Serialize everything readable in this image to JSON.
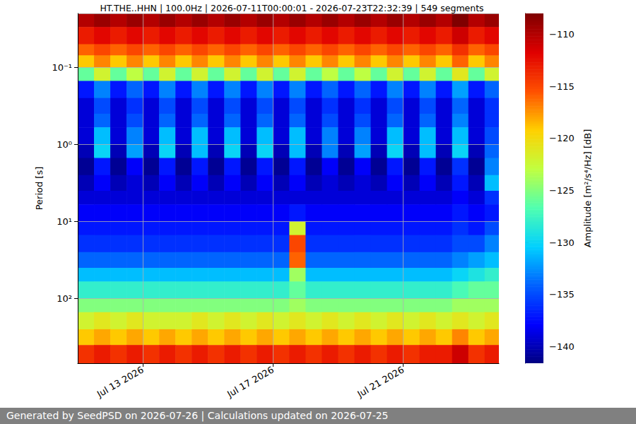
{
  "chart_data": {
    "type": "heatmap",
    "title": "HT.THE..HHN | 100.0Hz | 2026-07-11T00:00:01 - 2026-07-23T22:32:39 | 549 segments",
    "ylabel": "Period [s]",
    "footer": "Generated by SeedPSD on 2026-07-26 | Calculations updated on 2026-07-25",
    "log": "y",
    "grid": true,
    "xlim": [
      "2026-07-11T00:00:01",
      "2026-07-23T22:32:39"
    ],
    "xticks": [
      {
        "value": "2026-07-13T00:00:00",
        "label": "Jul 13 2026"
      },
      {
        "value": "2026-07-17T00:00:00",
        "label": "Jul 17 2026"
      },
      {
        "value": "2026-07-21T00:00:00",
        "label": "Jul 21 2026"
      }
    ],
    "ylim": [
      0.02,
      690
    ],
    "yticks": [
      {
        "value": 0.1,
        "label": "10⁻¹"
      },
      {
        "value": 1,
        "label": "10⁰"
      },
      {
        "value": 10,
        "label": "10¹"
      },
      {
        "value": 100,
        "label": "10²"
      }
    ],
    "x_edges": [
      "2026-07-11T00:00:01",
      "2026-07-11T12:00:00",
      "2026-07-12T00:00:00",
      "2026-07-12T12:00:00",
      "2026-07-13T00:00:00",
      "2026-07-13T12:00:00",
      "2026-07-14T00:00:00",
      "2026-07-14T12:00:00",
      "2026-07-15T00:00:00",
      "2026-07-15T12:00:00",
      "2026-07-16T00:00:00",
      "2026-07-16T12:00:00",
      "2026-07-17T00:00:00",
      "2026-07-17T12:00:00",
      "2026-07-18T00:00:00",
      "2026-07-18T12:00:00",
      "2026-07-19T00:00:00",
      "2026-07-19T12:00:00",
      "2026-07-20T00:00:00",
      "2026-07-20T12:00:00",
      "2026-07-21T00:00:00",
      "2026-07-21T12:00:00",
      "2026-07-22T00:00:00",
      "2026-07-22T12:00:00",
      "2026-07-23T00:00:00",
      "2026-07-23T12:00:00",
      "2026-07-23T22:32:39"
    ],
    "y_edges": [
      0.02,
      0.03,
      0.05,
      0.07,
      0.1,
      0.15,
      0.25,
      0.4,
      0.6,
      1,
      1.5,
      2.5,
      4,
      6,
      10,
      15,
      25,
      40,
      60,
      100,
      150,
      250,
      400,
      690
    ],
    "cells": [
      [
        -110,
        -109,
        -110,
        -109,
        -110,
        -109,
        -110,
        -109,
        -110,
        -109,
        -110,
        -109,
        -110,
        -109,
        -110,
        -109,
        -110,
        -109,
        -110,
        -109,
        -110,
        -109,
        -110,
        -108,
        -110,
        -109
      ],
      [
        -113,
        -112,
        -113,
        -112,
        -113,
        -112,
        -113,
        -112,
        -113,
        -112,
        -113,
        -112,
        -113,
        -112,
        -113,
        -112,
        -113,
        -112,
        -113,
        -112,
        -113,
        -112,
        -113,
        -111,
        -113,
        -112
      ],
      [
        -116,
        -115,
        -116,
        -115,
        -116,
        -115,
        -116,
        -115,
        -116,
        -115,
        -116,
        -115,
        -116,
        -115,
        -116,
        -115,
        -116,
        -115,
        -116,
        -115,
        -116,
        -115,
        -116,
        -114,
        -116,
        -115
      ],
      [
        -119,
        -117,
        -119,
        -117,
        -119,
        -117,
        -119,
        -117,
        -119,
        -117,
        -119,
        -117,
        -119,
        -117,
        -119,
        -117,
        -119,
        -117,
        -119,
        -117,
        -119,
        -117,
        -119,
        -116,
        -119,
        -117
      ],
      [
        -126,
        -122,
        -126,
        -123,
        -126,
        -122,
        -126,
        -122,
        -126,
        -122,
        -126,
        -122,
        -126,
        -122,
        -126,
        -123,
        -126,
        -123,
        -126,
        -122,
        -126,
        -122,
        -126,
        -121,
        -126,
        -122
      ],
      [
        -137,
        -133,
        -137,
        -134,
        -137,
        -133,
        -137,
        -133,
        -137,
        -133,
        -137,
        -133,
        -137,
        -133,
        -137,
        -134,
        -137,
        -134,
        -137,
        -133,
        -137,
        -133,
        -137,
        -132,
        -137,
        -134
      ],
      [
        -139,
        -135,
        -139,
        -136,
        -139,
        -135,
        -139,
        -135,
        -139,
        -135,
        -139,
        -135,
        -139,
        -135,
        -139,
        -136,
        -139,
        -136,
        -139,
        -135,
        -139,
        -135,
        -139,
        -134,
        -139,
        -136
      ],
      [
        -139,
        -134,
        -139,
        -135,
        -139,
        -134,
        -139,
        -134,
        -139,
        -134,
        -139,
        -134,
        -139,
        -134,
        -139,
        -135,
        -139,
        -135,
        -139,
        -134,
        -139,
        -134,
        -139,
        -133,
        -139,
        -136
      ],
      [
        -139,
        -131,
        -139,
        -133,
        -139,
        -131,
        -139,
        -131,
        -139,
        -131,
        -139,
        -131,
        -139,
        -131,
        -139,
        -133,
        -139,
        -133,
        -139,
        -131,
        -139,
        -131,
        -139,
        -131,
        -139,
        -135
      ],
      [
        -140,
        -130,
        -140,
        -132,
        -140,
        -130,
        -140,
        -131,
        -140,
        -130,
        -140,
        -130,
        -140,
        -131,
        -140,
        -133,
        -140,
        -132,
        -140,
        -130,
        -140,
        -131,
        -140,
        -130,
        -140,
        -134
      ],
      [
        -141,
        -137,
        -141,
        -138,
        -141,
        -137,
        -141,
        -137,
        -141,
        -137,
        -141,
        -137,
        -141,
        -137,
        -141,
        -138,
        -141,
        -138,
        -141,
        -137,
        -141,
        -137,
        -141,
        -136,
        -141,
        -133
      ],
      [
        -140,
        -138,
        -140,
        -139,
        -140,
        -138,
        -140,
        -138,
        -140,
        -138,
        -140,
        -138,
        -140,
        -138,
        -140,
        -139,
        -140,
        -139,
        -140,
        -138,
        -140,
        -138,
        -140,
        -137,
        -140,
        -131
      ],
      [
        -139,
        -139,
        -139,
        -139,
        -139,
        -139,
        -139,
        -139,
        -139,
        -139,
        -139,
        -139,
        -139,
        -139,
        -139,
        -139,
        -139,
        -139,
        -139,
        -139,
        -139,
        -139,
        -139,
        -138,
        -139,
        -136
      ],
      [
        -138,
        -138,
        -138,
        -138,
        -138,
        -138,
        -138,
        -138,
        -138,
        -138,
        -138,
        -138,
        -138,
        -137,
        -138,
        -138,
        -138,
        -138,
        -138,
        -138,
        -138,
        -138,
        -138,
        -137,
        -138,
        -137
      ],
      [
        -137,
        -137,
        -137,
        -137,
        -137,
        -137,
        -137,
        -137,
        -137,
        -137,
        -137,
        -137,
        -137,
        -122,
        -137,
        -137,
        -137,
        -137,
        -137,
        -137,
        -137,
        -137,
        -137,
        -136,
        -137,
        -135
      ],
      [
        -136,
        -136,
        -136,
        -136,
        -136,
        -136,
        -136,
        -136,
        -136,
        -136,
        -136,
        -136,
        -136,
        -115,
        -136,
        -136,
        -136,
        -136,
        -136,
        -136,
        -136,
        -136,
        -136,
        -135,
        -135,
        -133
      ],
      [
        -134,
        -134,
        -134,
        -134,
        -134,
        -134,
        -134,
        -134,
        -134,
        -134,
        -134,
        -134,
        -134,
        -116,
        -134,
        -134,
        -134,
        -134,
        -134,
        -134,
        -134,
        -134,
        -134,
        -133,
        -132,
        -131
      ],
      [
        -131,
        -131,
        -131,
        -131,
        -131,
        -131,
        -131,
        -131,
        -131,
        -131,
        -131,
        -131,
        -131,
        -124,
        -131,
        -131,
        -131,
        -131,
        -131,
        -131,
        -131,
        -131,
        -131,
        -130,
        -129,
        -128
      ],
      [
        -128,
        -128,
        -128,
        -128,
        -128,
        -128,
        -128,
        -128,
        -128,
        -128,
        -128,
        -128,
        -128,
        -126,
        -128,
        -128,
        -128,
        -128,
        -128,
        -128,
        -128,
        -128,
        -128,
        -127,
        -126,
        -126
      ],
      [
        -125,
        -125,
        -125,
        -125,
        -125,
        -125,
        -125,
        -125,
        -125,
        -125,
        -125,
        -125,
        -125,
        -124,
        -125,
        -125,
        -125,
        -125,
        -125,
        -125,
        -125,
        -125,
        -125,
        -124,
        -124,
        -124
      ],
      [
        -122,
        -121,
        -122,
        -121,
        -122,
        -122,
        -122,
        -121,
        -122,
        -121,
        -122,
        -121,
        -122,
        -121,
        -122,
        -121,
        -122,
        -121,
        -122,
        -121,
        -122,
        -121,
        -122,
        -121,
        -122,
        -121
      ],
      [
        -119,
        -118,
        -119,
        -118,
        -119,
        -118,
        -119,
        -118,
        -119,
        -118,
        -119,
        -118,
        -119,
        -118,
        -119,
        -118,
        -119,
        -118,
        -119,
        -118,
        -119,
        -118,
        -119,
        -117,
        -119,
        -118
      ],
      [
        -114,
        -113,
        -114,
        -113,
        -114,
        -113,
        -114,
        -113,
        -114,
        -113,
        -114,
        -113,
        -114,
        -113,
        -114,
        -113,
        -114,
        -113,
        -114,
        -113,
        -114,
        -113,
        -113,
        -111,
        -114,
        -113
      ]
    ],
    "colorbar": {
      "label": "Amplitude [m²/s⁴/Hz] [dB]",
      "range": [
        -141.6,
        -108
      ],
      "ticks": [
        {
          "value": -140,
          "label": "−140"
        },
        {
          "value": -135,
          "label": "−135"
        },
        {
          "value": -130,
          "label": "−130"
        },
        {
          "value": -125,
          "label": "−125"
        },
        {
          "value": -120,
          "label": "−120"
        },
        {
          "value": -115,
          "label": "−115"
        },
        {
          "value": -110,
          "label": "−110"
        }
      ]
    }
  }
}
